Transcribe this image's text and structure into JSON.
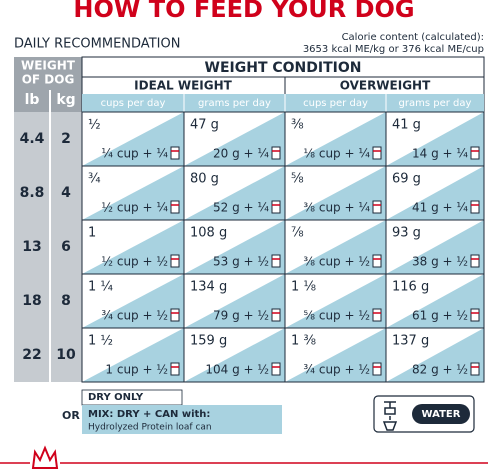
{
  "title": "HOW TO FEED YOUR DOG",
  "subtitle": "DAILY RECOMMENDATION",
  "calorie_note": [
    "Calorie content (calculated):",
    "3653 kcal ME/kg or 376 kcal ME/cup"
  ],
  "table": {
    "weight_header": [
      "WEIGHT",
      "OF DOG"
    ],
    "units": [
      "lb",
      "kg"
    ],
    "condition_header": "WEIGHT CONDITION",
    "groups": [
      "IDEAL WEIGHT",
      "OVERWEIGHT"
    ],
    "columns": [
      "cups per day",
      "grams per day",
      "cups per day",
      "grams per day"
    ],
    "rows": [
      {
        "lb": "4.4",
        "kg": "2",
        "cells": [
          {
            "dry": "½",
            "mix": "¼ cup + ¼"
          },
          {
            "dry": "47 g",
            "mix": "20 g + ¼"
          },
          {
            "dry": "⅜",
            "mix": "⅛ cup + ¼"
          },
          {
            "dry": "41 g",
            "mix": "14 g + ¼"
          }
        ]
      },
      {
        "lb": "8.8",
        "kg": "4",
        "cells": [
          {
            "dry": "¾",
            "mix": "½ cup + ¼"
          },
          {
            "dry": "80 g",
            "mix": "52 g + ¼"
          },
          {
            "dry": "⅝",
            "mix": "⅜ cup + ¼"
          },
          {
            "dry": "69 g",
            "mix": "41 g + ¼"
          }
        ]
      },
      {
        "lb": "13",
        "kg": "6",
        "cells": [
          {
            "dry": "1",
            "mix": "½ cup + ½"
          },
          {
            "dry": "108 g",
            "mix": "53 g + ½"
          },
          {
            "dry": "⅞",
            "mix": "⅜ cup + ½"
          },
          {
            "dry": "93 g",
            "mix": "38 g + ½"
          }
        ]
      },
      {
        "lb": "18",
        "kg": "8",
        "cells": [
          {
            "dry": "1 ¼",
            "mix": "¾ cup + ½"
          },
          {
            "dry": "134 g",
            "mix": "79 g + ½"
          },
          {
            "dry": "1 ⅛",
            "mix": "⅝ cup + ½"
          },
          {
            "dry": "116 g",
            "mix": "61 g + ½"
          }
        ]
      },
      {
        "lb": "22",
        "kg": "10",
        "cells": [
          {
            "dry": "1 ½",
            "mix": "1 cup + ½"
          },
          {
            "dry": "159 g",
            "mix": "104 g + ½"
          },
          {
            "dry": "1 ⅜",
            "mix": "¾ cup + ½"
          },
          {
            "dry": "137 g",
            "mix": "82 g + ½"
          }
        ]
      }
    ]
  },
  "legend": {
    "dry": "DRY ONLY",
    "or": "OR",
    "mix": "MIX: DRY + CAN with:",
    "mix_detail": "Hydrolyzed Protein loaf can",
    "water": "WATER"
  }
}
